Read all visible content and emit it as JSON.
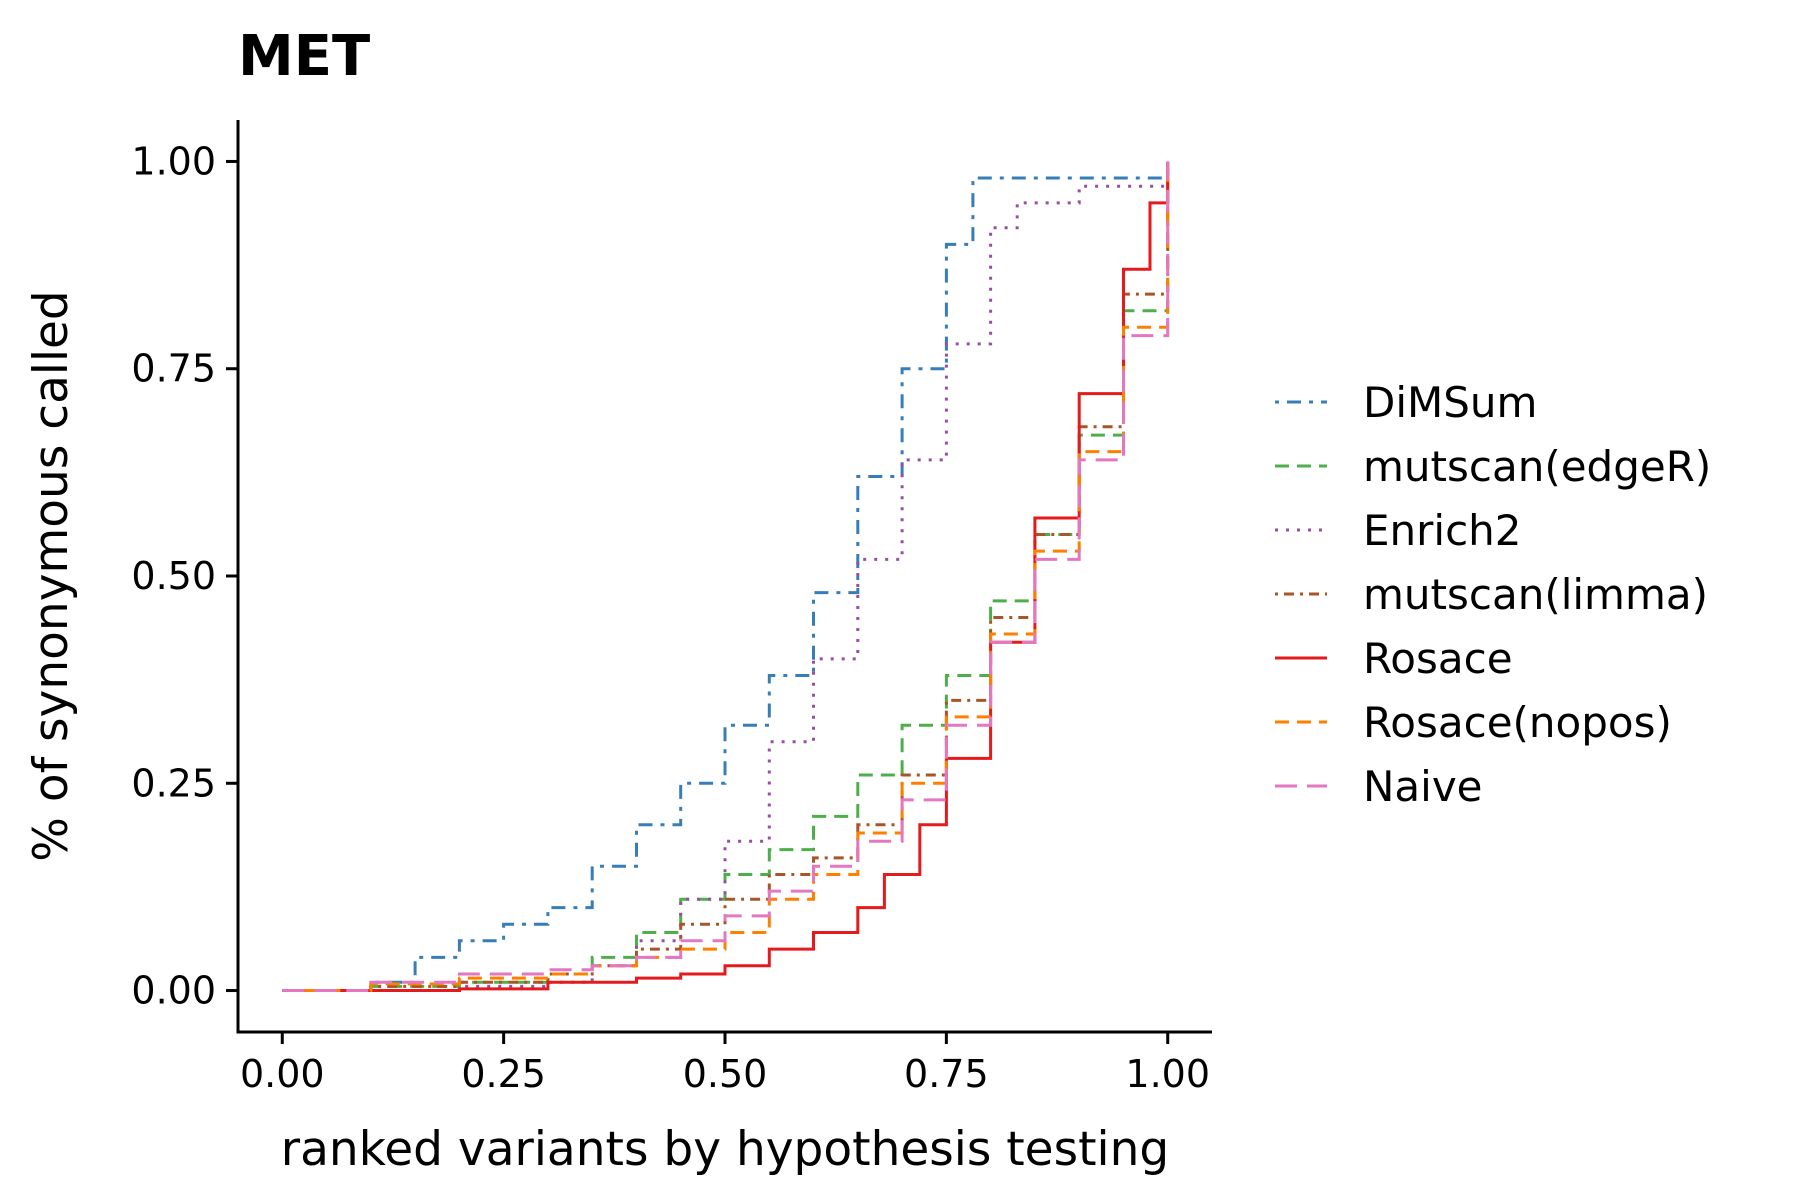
{
  "chart_data": {
    "type": "line",
    "title": "MET",
    "xlabel": "ranked variants by hypothesis testing",
    "ylabel": "% of synonymous called",
    "xlim": [
      -0.05,
      1.05
    ],
    "ylim": [
      -0.05,
      1.05
    ],
    "xticks": [
      0,
      0.25,
      0.5,
      0.75,
      1
    ],
    "xtick_labels": [
      "0.00",
      "0.25",
      "0.50",
      "0.75",
      "1.00"
    ],
    "yticks": [
      0,
      0.25,
      0.5,
      0.75,
      1
    ],
    "ytick_labels": [
      "0.00",
      "0.25",
      "0.50",
      "0.75",
      "1.00"
    ],
    "grid": false,
    "legend_position": "right",
    "series": [
      {
        "name": "DiMSum",
        "color": "#377eb8",
        "dash": "dashdot",
        "x": [
          0,
          0.1,
          0.15,
          0.2,
          0.25,
          0.3,
          0.35,
          0.4,
          0.45,
          0.5,
          0.55,
          0.6,
          0.65,
          0.7,
          0.75,
          0.78,
          1.0
        ],
        "y": [
          0,
          0.01,
          0.04,
          0.06,
          0.08,
          0.1,
          0.15,
          0.2,
          0.25,
          0.32,
          0.38,
          0.48,
          0.62,
          0.75,
          0.9,
          0.98,
          0.98
        ]
      },
      {
        "name": "mutscan(edgeR)",
        "color": "#4daf4a",
        "dash": "dashed",
        "x": [
          0,
          0.1,
          0.2,
          0.3,
          0.35,
          0.4,
          0.45,
          0.5,
          0.55,
          0.6,
          0.65,
          0.7,
          0.75,
          0.8,
          0.85,
          0.9,
          0.95,
          1.0
        ],
        "y": [
          0,
          0.005,
          0.01,
          0.02,
          0.04,
          0.07,
          0.11,
          0.14,
          0.17,
          0.21,
          0.26,
          0.32,
          0.38,
          0.47,
          0.55,
          0.67,
          0.82,
          1.0
        ]
      },
      {
        "name": "Enrich2",
        "color": "#984ea3",
        "dash": "dotted",
        "x": [
          0,
          0.2,
          0.3,
          0.35,
          0.4,
          0.45,
          0.5,
          0.55,
          0.6,
          0.65,
          0.7,
          0.75,
          0.8,
          0.83,
          0.9,
          0.95,
          1.0
        ],
        "y": [
          0,
          0.005,
          0.01,
          0.03,
          0.06,
          0.11,
          0.18,
          0.3,
          0.4,
          0.52,
          0.64,
          0.78,
          0.92,
          0.95,
          0.97,
          0.97,
          1.0
        ]
      },
      {
        "name": "mutscan(limma)",
        "color": "#a65628",
        "dash": "dotdash",
        "x": [
          0,
          0.1,
          0.2,
          0.3,
          0.35,
          0.4,
          0.45,
          0.5,
          0.55,
          0.6,
          0.65,
          0.7,
          0.75,
          0.8,
          0.85,
          0.9,
          0.95,
          1.0
        ],
        "y": [
          0,
          0.005,
          0.01,
          0.02,
          0.03,
          0.05,
          0.08,
          0.11,
          0.14,
          0.16,
          0.2,
          0.26,
          0.35,
          0.45,
          0.55,
          0.68,
          0.84,
          1.0
        ]
      },
      {
        "name": "Rosace",
        "color": "#e41a1c",
        "dash": "solid",
        "x": [
          0,
          0.1,
          0.2,
          0.3,
          0.4,
          0.45,
          0.5,
          0.55,
          0.6,
          0.65,
          0.68,
          0.72,
          0.75,
          0.8,
          0.85,
          0.9,
          0.95,
          0.98,
          1.0
        ],
        "y": [
          0,
          0.0,
          0.002,
          0.01,
          0.015,
          0.02,
          0.03,
          0.05,
          0.07,
          0.1,
          0.14,
          0.2,
          0.28,
          0.42,
          0.57,
          0.72,
          0.87,
          0.95,
          1.0
        ]
      },
      {
        "name": "Rosace(nopos)",
        "color": "#ff7f00",
        "dash": "dashed",
        "x": [
          0,
          0.1,
          0.2,
          0.3,
          0.35,
          0.4,
          0.45,
          0.5,
          0.55,
          0.6,
          0.65,
          0.7,
          0.75,
          0.8,
          0.85,
          0.9,
          0.95,
          1.0
        ],
        "y": [
          0,
          0.008,
          0.015,
          0.02,
          0.03,
          0.04,
          0.05,
          0.07,
          0.11,
          0.14,
          0.19,
          0.25,
          0.33,
          0.43,
          0.53,
          0.65,
          0.8,
          1.0
        ]
      },
      {
        "name": "Naive",
        "color": "#e377c2",
        "dash": "longdash",
        "x": [
          0,
          0.1,
          0.2,
          0.3,
          0.35,
          0.4,
          0.45,
          0.5,
          0.55,
          0.6,
          0.65,
          0.7,
          0.75,
          0.8,
          0.85,
          0.9,
          0.95,
          1.0
        ],
        "y": [
          0,
          0.01,
          0.02,
          0.025,
          0.03,
          0.04,
          0.06,
          0.09,
          0.12,
          0.15,
          0.18,
          0.23,
          0.32,
          0.42,
          0.52,
          0.64,
          0.79,
          1.0
        ]
      }
    ]
  }
}
